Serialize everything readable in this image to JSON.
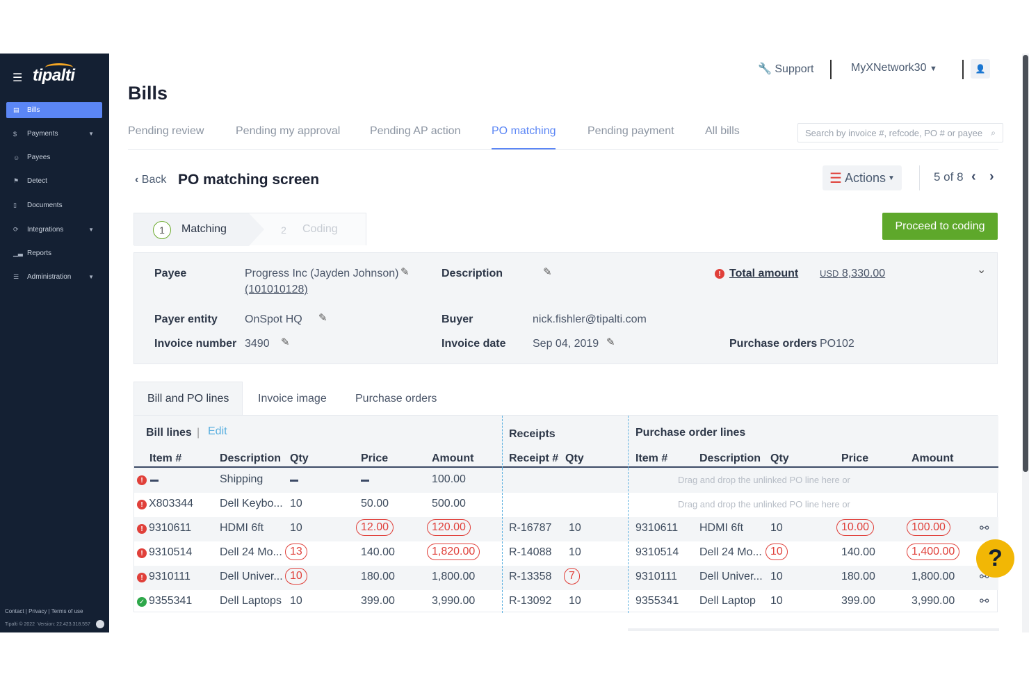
{
  "sidebar": {
    "logo": "tipalti",
    "items": [
      {
        "label": "Bills",
        "icon": "file-icon"
      },
      {
        "label": "Payments",
        "icon": "money-icon"
      },
      {
        "label": "Payees",
        "icon": "users-icon"
      },
      {
        "label": "Detect",
        "icon": "detect-icon"
      },
      {
        "label": "Documents",
        "icon": "document-icon"
      },
      {
        "label": "Integrations",
        "icon": "sync-icon"
      },
      {
        "label": "Reports",
        "icon": "chart-icon"
      },
      {
        "label": "Administration",
        "icon": "sliders-icon"
      }
    ],
    "footer_links": "Contact | Privacy | Terms of use",
    "copyright": "Tipalti © 2022",
    "version": "Version: 22.423.318.557"
  },
  "header": {
    "support": "Support",
    "network": "MyXNetwork30"
  },
  "page_title": "Bills",
  "tabs": [
    "Pending review",
    "Pending my approval",
    "Pending AP action",
    "PO matching",
    "Pending payment",
    "All bills"
  ],
  "search_placeholder": "Search by invoice #, refcode, PO # or payee",
  "screen": {
    "back": "Back",
    "title": "PO matching screen",
    "actions": "Actions",
    "pager": "5 of 8",
    "steps": [
      {
        "num": "1",
        "label": "Matching"
      },
      {
        "num": "2",
        "label": "Coding"
      }
    ],
    "proceed": "Proceed to coding"
  },
  "details": {
    "payee_label": "Payee",
    "payee_value": "Progress Inc (Jayden Johnson)",
    "payee_id": "(101010128)",
    "description_label": "Description",
    "total_label": "Total amount",
    "total_currency": "USD",
    "total_value": "8,330.00",
    "payer_label": "Payer entity",
    "payer_value": "OnSpot HQ",
    "buyer_label": "Buyer",
    "buyer_value": "nick.fishler@tipalti.com",
    "invoice_num_label": "Invoice number",
    "invoice_num_value": "3490",
    "invoice_date_label": "Invoice date",
    "invoice_date_value": "Sep 04, 2019",
    "po_label": "Purchase orders",
    "po_value": "PO102"
  },
  "lower_tabs": [
    "Bill and PO lines",
    "Invoice image",
    "Purchase orders"
  ],
  "table": {
    "bill_lines": "Bill lines",
    "edit": "Edit",
    "receipts": "Receipts",
    "po_lines": "Purchase order lines",
    "cols_bill": [
      "Item #",
      "Description",
      "Qty",
      "Price",
      "Amount"
    ],
    "cols_receipt": [
      "Receipt #",
      "Qty"
    ],
    "cols_po": [
      "Item #",
      "Description",
      "Qty",
      "Price",
      "Amount"
    ],
    "drop_text": "Drag and drop the unlinked PO line here or",
    "rows": [
      {
        "status": "error",
        "item": "",
        "desc": "Shipping",
        "qty": "",
        "price": "",
        "amount": "100.00",
        "receipt": "",
        "rqty": "",
        "po_item": "",
        "po_desc": "",
        "po_qty": "",
        "po_price": "",
        "po_amount": "",
        "dash": true,
        "drop": true
      },
      {
        "status": "error",
        "item": "X803344",
        "desc": "Dell Keybo...",
        "qty": "10",
        "price": "50.00",
        "amount": "500.00",
        "receipt": "",
        "rqty": "",
        "po_item": "",
        "po_desc": "",
        "po_qty": "",
        "po_price": "",
        "po_amount": "",
        "drop": true
      },
      {
        "status": "error",
        "item": "9310611",
        "desc": "HDMI 6ft",
        "qty": "10",
        "price": "12.00",
        "amount": "120.00",
        "receipt": "R-16787",
        "rqty": "10",
        "po_item": "9310611",
        "po_desc": "HDMI 6ft",
        "po_qty": "10",
        "po_price": "10.00",
        "po_amount": "100.00",
        "err": [
          "price",
          "amount",
          "po_price",
          "po_amount"
        ]
      },
      {
        "status": "error",
        "item": "9310514",
        "desc": "Dell 24 Mo...",
        "qty": "13",
        "price": "140.00",
        "amount": "1,820.00",
        "receipt": "R-14088",
        "rqty": "10",
        "po_item": "9310514",
        "po_desc": "Dell 24 Mo...",
        "po_qty": "10",
        "po_price": "140.00",
        "po_amount": "1,400.00",
        "err": [
          "qty",
          "amount",
          "po_qty",
          "po_amount"
        ]
      },
      {
        "status": "error",
        "item": "9310111",
        "desc": "Dell Univer...",
        "qty": "10",
        "price": "180.00",
        "amount": "1,800.00",
        "receipt": "R-13358",
        "rqty": "7",
        "po_item": "9310111",
        "po_desc": "Dell Univer...",
        "po_qty": "10",
        "po_price": "180.00",
        "po_amount": "1,800.00",
        "err": [
          "qty",
          "rqty"
        ]
      },
      {
        "status": "ok",
        "item": "9355341",
        "desc": "Dell Laptops",
        "qty": "10",
        "price": "399.00",
        "amount": "3,990.00",
        "receipt": "R-13092",
        "rqty": "10",
        "po_item": "9355341",
        "po_desc": "Dell Laptop",
        "po_qty": "10",
        "po_price": "399.00",
        "po_amount": "3,990.00"
      }
    ]
  },
  "help": "?"
}
